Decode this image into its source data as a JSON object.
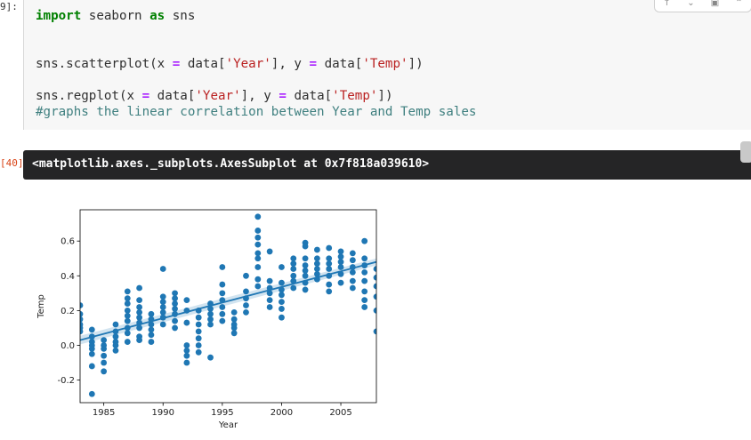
{
  "input_prompt": "9]:",
  "output_prompt": "[40]",
  "code": {
    "line1": {
      "kw_import": "import",
      "mod": " seaborn ",
      "kw_as": "as",
      "alias": " sns"
    },
    "line2": {
      "a": "sns.scatterplot(x ",
      "eq1": "=",
      "b": " data[",
      "s1": "'Year'",
      "c": "], y ",
      "eq2": "=",
      "d": " data[",
      "s2": "'Temp'",
      "e": "])"
    },
    "line3": {
      "a": "sns.regplot(x ",
      "eq1": "=",
      "b": " data[",
      "s1": "'Year'",
      "c": "], y ",
      "eq2": "=",
      "d": " data[",
      "s2": "'Temp'",
      "e": "])"
    },
    "comment": "#graphs the linear correlation between Year and Temp sales"
  },
  "output_text": "<matplotlib.axes._subplots.AxesSubplot at 0x7f818a039610>",
  "toolbar_icons": [
    "arrow-up-icon",
    "arrow-down-icon",
    "save-icon",
    "chevron-up-icon"
  ],
  "chart_data": {
    "type": "scatter",
    "xlabel": "Year",
    "ylabel": "Temp",
    "xlim": [
      1983,
      2008
    ],
    "ylim": [
      -0.33,
      0.78
    ],
    "xticks": [
      1985,
      1990,
      1995,
      2000,
      2005
    ],
    "yticks": [
      -0.2,
      0.0,
      0.2,
      0.4,
      0.6
    ],
    "grid": false,
    "point_color": "#1f77b4",
    "regression": {
      "intercept_at_1983": 0.03,
      "value_at_2008": 0.48
    },
    "points": [
      [
        1983,
        0.23
      ],
      [
        1983,
        0.18
      ],
      [
        1983,
        0.15
      ],
      [
        1983,
        0.12
      ],
      [
        1983,
        0.1
      ],
      [
        1983,
        0.08
      ],
      [
        1984,
        0.09
      ],
      [
        1984,
        0.05
      ],
      [
        1984,
        0.02
      ],
      [
        1984,
        0.0
      ],
      [
        1984,
        -0.02
      ],
      [
        1984,
        -0.05
      ],
      [
        1984,
        -0.12
      ],
      [
        1984,
        -0.28
      ],
      [
        1985,
        0.03
      ],
      [
        1985,
        0.0
      ],
      [
        1985,
        -0.02
      ],
      [
        1985,
        -0.06
      ],
      [
        1985,
        -0.1
      ],
      [
        1985,
        -0.15
      ],
      [
        1986,
        0.12
      ],
      [
        1986,
        0.08
      ],
      [
        1986,
        0.05
      ],
      [
        1986,
        0.02
      ],
      [
        1986,
        0.0
      ],
      [
        1986,
        -0.03
      ],
      [
        1987,
        0.31
      ],
      [
        1987,
        0.27
      ],
      [
        1987,
        0.24
      ],
      [
        1987,
        0.2
      ],
      [
        1987,
        0.17
      ],
      [
        1987,
        0.14
      ],
      [
        1987,
        0.1
      ],
      [
        1987,
        0.07
      ],
      [
        1987,
        0.02
      ],
      [
        1988,
        0.33
      ],
      [
        1988,
        0.26
      ],
      [
        1988,
        0.22
      ],
      [
        1988,
        0.19
      ],
      [
        1988,
        0.16
      ],
      [
        1988,
        0.13
      ],
      [
        1988,
        0.1
      ],
      [
        1988,
        0.05
      ],
      [
        1988,
        0.03
      ],
      [
        1989,
        0.18
      ],
      [
        1989,
        0.15
      ],
      [
        1989,
        0.12
      ],
      [
        1989,
        0.09
      ],
      [
        1989,
        0.06
      ],
      [
        1989,
        0.02
      ],
      [
        1990,
        0.44
      ],
      [
        1990,
        0.28
      ],
      [
        1990,
        0.25
      ],
      [
        1990,
        0.22
      ],
      [
        1990,
        0.19
      ],
      [
        1990,
        0.16
      ],
      [
        1990,
        0.12
      ],
      [
        1991,
        0.3
      ],
      [
        1991,
        0.27
      ],
      [
        1991,
        0.24
      ],
      [
        1991,
        0.21
      ],
      [
        1991,
        0.18
      ],
      [
        1991,
        0.14
      ],
      [
        1991,
        0.1
      ],
      [
        1992,
        0.26
      ],
      [
        1992,
        0.2
      ],
      [
        1992,
        0.13
      ],
      [
        1992,
        0.0
      ],
      [
        1992,
        -0.03
      ],
      [
        1992,
        -0.06
      ],
      [
        1992,
        -0.1
      ],
      [
        1993,
        0.2
      ],
      [
        1993,
        0.16
      ],
      [
        1993,
        0.12
      ],
      [
        1993,
        0.08
      ],
      [
        1993,
        0.04
      ],
      [
        1993,
        0.0
      ],
      [
        1993,
        -0.04
      ],
      [
        1994,
        0.24
      ],
      [
        1994,
        0.21
      ],
      [
        1994,
        0.18
      ],
      [
        1994,
        0.15
      ],
      [
        1994,
        0.12
      ],
      [
        1994,
        -0.07
      ],
      [
        1995,
        0.45
      ],
      [
        1995,
        0.35
      ],
      [
        1995,
        0.3
      ],
      [
        1995,
        0.26
      ],
      [
        1995,
        0.22
      ],
      [
        1995,
        0.18
      ],
      [
        1995,
        0.14
      ],
      [
        1996,
        0.19
      ],
      [
        1996,
        0.15
      ],
      [
        1996,
        0.12
      ],
      [
        1996,
        0.1
      ],
      [
        1996,
        0.07
      ],
      [
        1997,
        0.4
      ],
      [
        1997,
        0.31
      ],
      [
        1997,
        0.27
      ],
      [
        1997,
        0.23
      ],
      [
        1997,
        0.19
      ],
      [
        1998,
        0.74
      ],
      [
        1998,
        0.66
      ],
      [
        1998,
        0.62
      ],
      [
        1998,
        0.58
      ],
      [
        1998,
        0.53
      ],
      [
        1998,
        0.5
      ],
      [
        1998,
        0.45
      ],
      [
        1998,
        0.38
      ],
      [
        1998,
        0.34
      ],
      [
        1999,
        0.54
      ],
      [
        1999,
        0.37
      ],
      [
        1999,
        0.33
      ],
      [
        1999,
        0.3
      ],
      [
        1999,
        0.26
      ],
      [
        1999,
        0.22
      ],
      [
        2000,
        0.45
      ],
      [
        2000,
        0.36
      ],
      [
        2000,
        0.32
      ],
      [
        2000,
        0.29
      ],
      [
        2000,
        0.25
      ],
      [
        2000,
        0.21
      ],
      [
        2000,
        0.16
      ],
      [
        2001,
        0.5
      ],
      [
        2001,
        0.47
      ],
      [
        2001,
        0.44
      ],
      [
        2001,
        0.4
      ],
      [
        2001,
        0.37
      ],
      [
        2001,
        0.33
      ],
      [
        2002,
        0.59
      ],
      [
        2002,
        0.57
      ],
      [
        2002,
        0.5
      ],
      [
        2002,
        0.46
      ],
      [
        2002,
        0.43
      ],
      [
        2002,
        0.4
      ],
      [
        2002,
        0.36
      ],
      [
        2002,
        0.32
      ],
      [
        2003,
        0.55
      ],
      [
        2003,
        0.5
      ],
      [
        2003,
        0.47
      ],
      [
        2003,
        0.44
      ],
      [
        2003,
        0.41
      ],
      [
        2003,
        0.38
      ],
      [
        2004,
        0.56
      ],
      [
        2004,
        0.5
      ],
      [
        2004,
        0.47
      ],
      [
        2004,
        0.44
      ],
      [
        2004,
        0.4
      ],
      [
        2004,
        0.35
      ],
      [
        2004,
        0.31
      ],
      [
        2005,
        0.54
      ],
      [
        2005,
        0.51
      ],
      [
        2005,
        0.48
      ],
      [
        2005,
        0.45
      ],
      [
        2005,
        0.41
      ],
      [
        2005,
        0.36
      ],
      [
        2006,
        0.53
      ],
      [
        2006,
        0.49
      ],
      [
        2006,
        0.45
      ],
      [
        2006,
        0.42
      ],
      [
        2006,
        0.37
      ],
      [
        2006,
        0.33
      ],
      [
        2007,
        0.6
      ],
      [
        2007,
        0.5
      ],
      [
        2007,
        0.46
      ],
      [
        2007,
        0.42
      ],
      [
        2007,
        0.37
      ],
      [
        2007,
        0.31
      ],
      [
        2007,
        0.26
      ],
      [
        2007,
        0.22
      ],
      [
        2008,
        0.44
      ],
      [
        2008,
        0.39
      ],
      [
        2008,
        0.34
      ],
      [
        2008,
        0.28
      ],
      [
        2008,
        0.2
      ],
      [
        2008,
        0.08
      ]
    ]
  }
}
